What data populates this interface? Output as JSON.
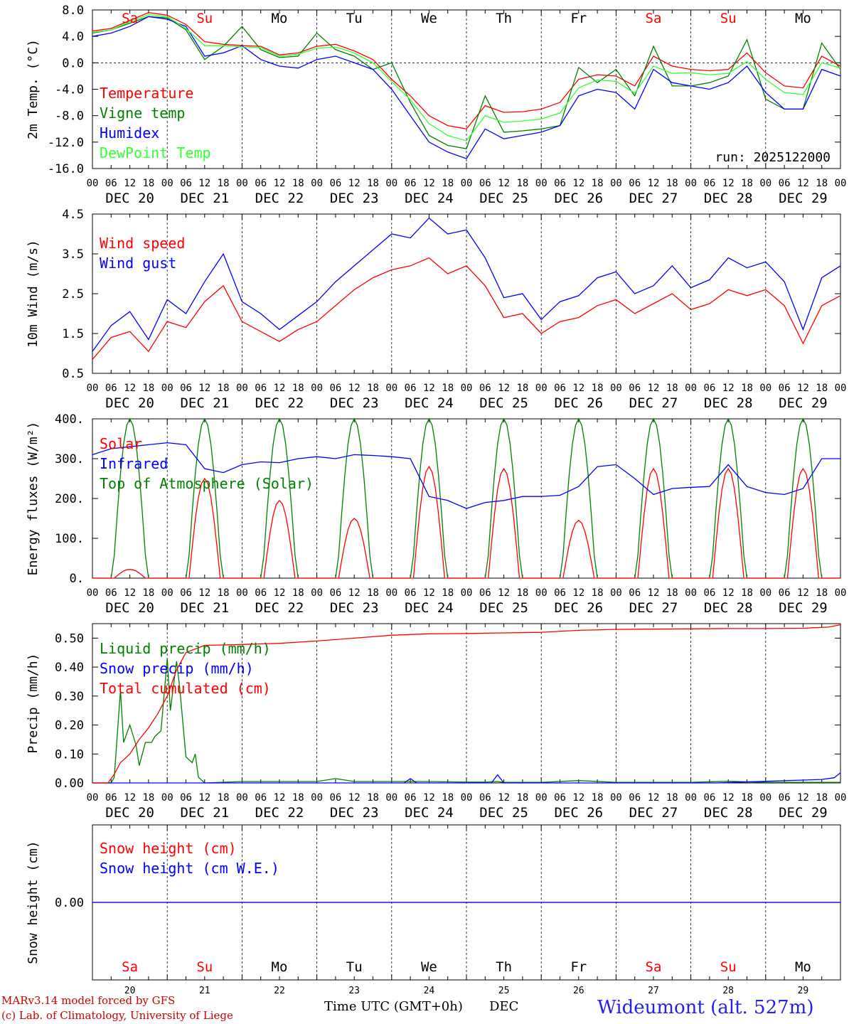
{
  "colors": {
    "temperature": "#ff0000",
    "vigne": "#008000",
    "humidex": "#0000ff",
    "dewpoint": "#33ff33",
    "axis": "#000000",
    "footer_red": "#cc0000",
    "footer_blue": "#2222ee"
  },
  "run_label": "run: 2025122000",
  "time_ticks": [
    "00",
    "06",
    "12",
    "18",
    "00",
    "06",
    "12",
    "18",
    "00",
    "06",
    "12",
    "18",
    "00",
    "06",
    "12",
    "18",
    "00",
    "06",
    "12",
    "18",
    "00",
    "06",
    "12",
    "18",
    "00",
    "06",
    "12",
    "18",
    "00",
    "06",
    "12",
    "18",
    "00",
    "06",
    "12",
    "18",
    "00",
    "06",
    "12",
    "18",
    "00"
  ],
  "date_labels": [
    "DEC 20",
    "DEC 21",
    "DEC 22",
    "DEC 23",
    "DEC 24",
    "DEC 25",
    "DEC 26",
    "DEC 27",
    "DEC 28",
    "DEC 29"
  ],
  "weekdays": [
    {
      "label": "Sa",
      "weekend": true
    },
    {
      "label": "Su",
      "weekend": true
    },
    {
      "label": "Mo",
      "weekend": false
    },
    {
      "label": "Tu",
      "weekend": false
    },
    {
      "label": "We",
      "weekend": false
    },
    {
      "label": "Th",
      "weekend": false
    },
    {
      "label": "Fr",
      "weekend": false
    },
    {
      "label": "Sa",
      "weekend": true
    },
    {
      "label": "Su",
      "weekend": true
    },
    {
      "label": "Mo",
      "weekend": false
    }
  ],
  "bottom_day_numbers": [
    "20",
    "21",
    "22",
    "23",
    "24",
    "25",
    "26",
    "27",
    "28",
    "29"
  ],
  "chart_data": [
    {
      "type": "line",
      "id": "temp",
      "ylabel": "2m Temp. (°C)",
      "ylim": [
        -16,
        8
      ],
      "yticks": [
        -16,
        -12,
        -8,
        -4,
        0,
        4,
        8
      ],
      "ytick_labels": [
        "-16.0",
        "-12.0",
        "-8.0",
        "-4.0",
        "0.0",
        "4.0",
        "8.0"
      ],
      "zero_line": true,
      "x_hours": [
        0,
        6,
        12,
        18,
        24,
        30,
        36,
        42,
        48,
        54,
        60,
        66,
        72,
        78,
        84,
        90,
        96,
        102,
        108,
        114,
        120,
        126,
        132,
        138,
        144,
        150,
        156,
        162,
        168,
        174,
        180,
        186,
        192,
        198,
        204,
        210,
        216,
        222,
        228,
        234,
        240
      ],
      "series": [
        {
          "name": "Temperature",
          "color": "#ff0000",
          "values": [
            4.8,
            5.2,
            6.4,
            7.6,
            7.2,
            5.8,
            3.2,
            2.8,
            2.6,
            2.5,
            1.2,
            1.5,
            2.5,
            2.8,
            1.8,
            0.5,
            -2.5,
            -5.0,
            -8.0,
            -9.5,
            -10.0,
            -6.5,
            -7.5,
            -7.4,
            -7.0,
            -6.0,
            -2.5,
            -1.8,
            -2.0,
            -3.5,
            1.0,
            -0.5,
            -1.0,
            -1.2,
            -1.0,
            1.5,
            -1.5,
            -3.5,
            -3.8,
            1.0,
            -0.5
          ]
        },
        {
          "name": "Vigne temp",
          "color": "#008000",
          "values": [
            4.5,
            5.0,
            6.0,
            7.0,
            6.8,
            5.0,
            0.5,
            2.5,
            5.5,
            2.0,
            0.8,
            1.0,
            4.5,
            2.0,
            1.0,
            -1.0,
            0.0,
            -6.0,
            -11.0,
            -12.5,
            -13.0,
            -5.0,
            -10.5,
            -10.3,
            -10.0,
            -9.5,
            -0.7,
            -3.0,
            -1.0,
            -5.0,
            2.5,
            -3.5,
            -3.5,
            -3.0,
            -2.0,
            3.5,
            -5.5,
            -7.0,
            -7.0,
            3.0,
            -1.0
          ]
        },
        {
          "name": "Humidex",
          "color": "#0000ff",
          "values": [
            4.0,
            4.5,
            5.5,
            7.0,
            6.6,
            5.5,
            1.0,
            1.5,
            2.6,
            0.5,
            -0.5,
            -0.8,
            0.5,
            1.0,
            0.0,
            -1.0,
            -4.0,
            -8.0,
            -12.0,
            -13.5,
            -14.5,
            -10.0,
            -11.5,
            -11.0,
            -10.5,
            -9.5,
            -5.0,
            -4.0,
            -4.5,
            -7.0,
            -1.0,
            -3.0,
            -3.5,
            -4.0,
            -3.0,
            -0.5,
            -4.5,
            -7.0,
            -7.0,
            -1.0,
            -2.0
          ]
        },
        {
          "name": "DewPoint Temp",
          "color": "#33ff33",
          "values": [
            4.6,
            5.0,
            6.2,
            7.3,
            7.0,
            5.2,
            2.6,
            2.6,
            2.4,
            2.3,
            1.0,
            1.3,
            2.2,
            2.4,
            1.5,
            0.0,
            -2.8,
            -5.6,
            -9.2,
            -11.0,
            -11.8,
            -8.0,
            -9.0,
            -8.8,
            -8.5,
            -7.6,
            -3.8,
            -2.6,
            -2.8,
            -4.6,
            -0.5,
            -1.6,
            -1.5,
            -1.8,
            -1.6,
            0.2,
            -2.5,
            -4.5,
            -4.8,
            0.0,
            -0.8
          ]
        }
      ],
      "legend": [
        "Temperature",
        "Vigne temp",
        "Humidex",
        "DewPoint Temp"
      ]
    },
    {
      "type": "line",
      "id": "wind",
      "ylabel": "10m Wind (m/s)",
      "ylim": [
        0.5,
        4.5
      ],
      "yticks": [
        0.5,
        1.5,
        2.5,
        3.5,
        4.5
      ],
      "ytick_labels": [
        "0.5",
        "1.5",
        "2.5",
        "3.5",
        "4.5"
      ],
      "x_hours": [
        0,
        6,
        12,
        18,
        24,
        30,
        36,
        42,
        48,
        54,
        60,
        66,
        72,
        78,
        84,
        90,
        96,
        102,
        108,
        114,
        120,
        126,
        132,
        138,
        144,
        150,
        156,
        162,
        168,
        174,
        180,
        186,
        192,
        198,
        204,
        210,
        216,
        222,
        228,
        234,
        240
      ],
      "series": [
        {
          "name": "Wind speed",
          "color": "#ff0000",
          "values": [
            0.85,
            1.4,
            1.55,
            1.05,
            1.8,
            1.65,
            2.3,
            2.7,
            1.8,
            1.55,
            1.3,
            1.6,
            1.8,
            2.2,
            2.6,
            2.9,
            3.1,
            3.2,
            3.4,
            3.0,
            3.2,
            2.7,
            1.9,
            2.0,
            1.5,
            1.8,
            1.9,
            2.2,
            2.35,
            2.0,
            2.25,
            2.5,
            2.1,
            2.25,
            2.6,
            2.45,
            2.6,
            2.2,
            1.25,
            2.2,
            2.45
          ]
        },
        {
          "name": "Wind gust",
          "color": "#0000ff",
          "values": [
            1.05,
            1.7,
            2.05,
            1.35,
            2.35,
            2.0,
            2.8,
            3.5,
            2.3,
            2.0,
            1.6,
            1.95,
            2.3,
            2.8,
            3.2,
            3.6,
            4.0,
            3.9,
            4.4,
            4.0,
            4.1,
            3.4,
            2.4,
            2.5,
            1.85,
            2.3,
            2.45,
            2.9,
            3.05,
            2.5,
            2.7,
            3.2,
            2.65,
            2.85,
            3.4,
            3.15,
            3.3,
            2.8,
            1.6,
            2.9,
            3.2
          ]
        }
      ],
      "legend": [
        "Wind speed",
        "Wind gust"
      ]
    },
    {
      "type": "line",
      "id": "energy",
      "ylabel": "Energy fluxes (W/m²)",
      "ylim": [
        0,
        400
      ],
      "yticks": [
        0,
        100,
        200,
        300,
        400
      ],
      "ytick_labels": [
        "0.",
        "100.",
        "200.",
        "300.",
        "400."
      ],
      "day_peaks": {
        "solar": [
          22,
          250,
          195,
          150,
          280,
          275,
          145,
          275,
          275,
          275
        ],
        "toa": [
          400,
          400,
          400,
          400,
          400,
          400,
          400,
          400,
          400,
          400
        ]
      },
      "series": [
        {
          "name": "Infrared",
          "color": "#0000ff",
          "x_hours": [
            0,
            6,
            12,
            18,
            24,
            30,
            36,
            42,
            48,
            54,
            60,
            66,
            72,
            78,
            84,
            90,
            96,
            102,
            108,
            114,
            120,
            126,
            132,
            138,
            144,
            150,
            156,
            162,
            168,
            174,
            180,
            186,
            192,
            198,
            204,
            210,
            216,
            222,
            228,
            234,
            240
          ],
          "values": [
            310,
            325,
            330,
            335,
            340,
            335,
            275,
            265,
            285,
            292,
            290,
            300,
            305,
            300,
            310,
            308,
            305,
            300,
            205,
            195,
            175,
            190,
            195,
            205,
            205,
            208,
            230,
            280,
            285,
            250,
            210,
            225,
            228,
            230,
            285,
            230,
            215,
            210,
            225,
            300,
            300
          ]
        }
      ],
      "legend": [
        "Solar",
        "Infrared",
        "Top of Atmosphere (Solar)"
      ],
      "legend_colors": [
        "#ff0000",
        "#0000ff",
        "#008000"
      ]
    },
    {
      "type": "line",
      "id": "precip",
      "ylabel": "Precip (mm/h)",
      "ylim": [
        0,
        0.55
      ],
      "yticks": [
        0,
        0.1,
        0.2,
        0.3,
        0.4,
        0.5
      ],
      "ytick_labels": [
        "0.00",
        "0.10",
        "0.20",
        "0.30",
        "0.40",
        "0.50"
      ],
      "series": [
        {
          "name": "Liquid precip (mm/h)",
          "color": "#008000",
          "x_hours": [
            0,
            6,
            7,
            9,
            10,
            12,
            14,
            15,
            17,
            19,
            20,
            22,
            24,
            25,
            27,
            28,
            30,
            32,
            33,
            34,
            36,
            48,
            60,
            72,
            78,
            84,
            96,
            108,
            120,
            126,
            130,
            132,
            144,
            156,
            168,
            180,
            192,
            204,
            216,
            228,
            234,
            240
          ],
          "values": [
            0,
            0,
            0.02,
            0.32,
            0.14,
            0.2,
            0.13,
            0.06,
            0.14,
            0.14,
            0.16,
            0.18,
            0.43,
            0.25,
            0.42,
            0.33,
            0.09,
            0.07,
            0.1,
            0.02,
            0,
            0.005,
            0.005,
            0.005,
            0.015,
            0.005,
            0.005,
            0.005,
            0.003,
            0.003,
            0.005,
            0.002,
            0.002,
            0.008,
            0.002,
            0.002,
            0.002,
            0.006,
            0.002,
            0.002,
            0.002,
            0.002
          ]
        },
        {
          "name": "Snow precip (mm/h)",
          "color": "#0000ff",
          "x_hours": [
            0,
            100,
            102,
            104,
            126,
            128,
            130,
            132,
            200,
            234,
            238,
            240
          ],
          "values": [
            0,
            0,
            0.015,
            0,
            0,
            0,
            0.028,
            0,
            0,
            0.012,
            0.018,
            0.035
          ]
        },
        {
          "name": "Total cumulated (cm)",
          "color": "#ff0000",
          "x_hours": [
            0,
            5,
            7,
            9,
            12,
            15,
            18,
            21,
            24,
            27,
            30,
            36,
            48,
            60,
            72,
            84,
            96,
            108,
            120,
            132,
            144,
            156,
            168,
            180,
            192,
            204,
            216,
            228,
            236,
            240
          ],
          "values": [
            0,
            0,
            0.03,
            0.07,
            0.1,
            0.15,
            0.19,
            0.24,
            0.3,
            0.39,
            0.45,
            0.475,
            0.478,
            0.482,
            0.49,
            0.5,
            0.51,
            0.515,
            0.516,
            0.518,
            0.52,
            0.527,
            0.53,
            0.531,
            0.532,
            0.533,
            0.533,
            0.534,
            0.538,
            0.546
          ]
        }
      ],
      "legend": [
        "Liquid precip (mm/h)",
        "Snow precip (mm/h)",
        "Total cumulated (cm)"
      ]
    },
    {
      "type": "line",
      "id": "snow",
      "ylabel": "Snow height (cm)",
      "ylim": [
        -1,
        1
      ],
      "yticks": [
        0
      ],
      "ytick_labels": [
        "0.00"
      ],
      "series": [
        {
          "name": "Snow height (cm)",
          "color": "#ff0000",
          "x_hours": [
            0,
            240
          ],
          "values": [
            0,
            0
          ]
        },
        {
          "name": "Snow height (cm W.E.)",
          "color": "#0000ff",
          "x_hours": [
            0,
            240
          ],
          "values": [
            0,
            0
          ]
        }
      ],
      "legend": [
        "Snow height (cm)",
        "Snow height (cm W.E.)"
      ]
    }
  ],
  "footer": {
    "credit1": "MARv3.14 model forced by GFS",
    "credit2": "(c) Lab. of Climatology, University of Liege",
    "xlabel": "Time UTC (GMT+0h)",
    "month": "DEC",
    "station": "Wideumont (alt. 527m)"
  }
}
